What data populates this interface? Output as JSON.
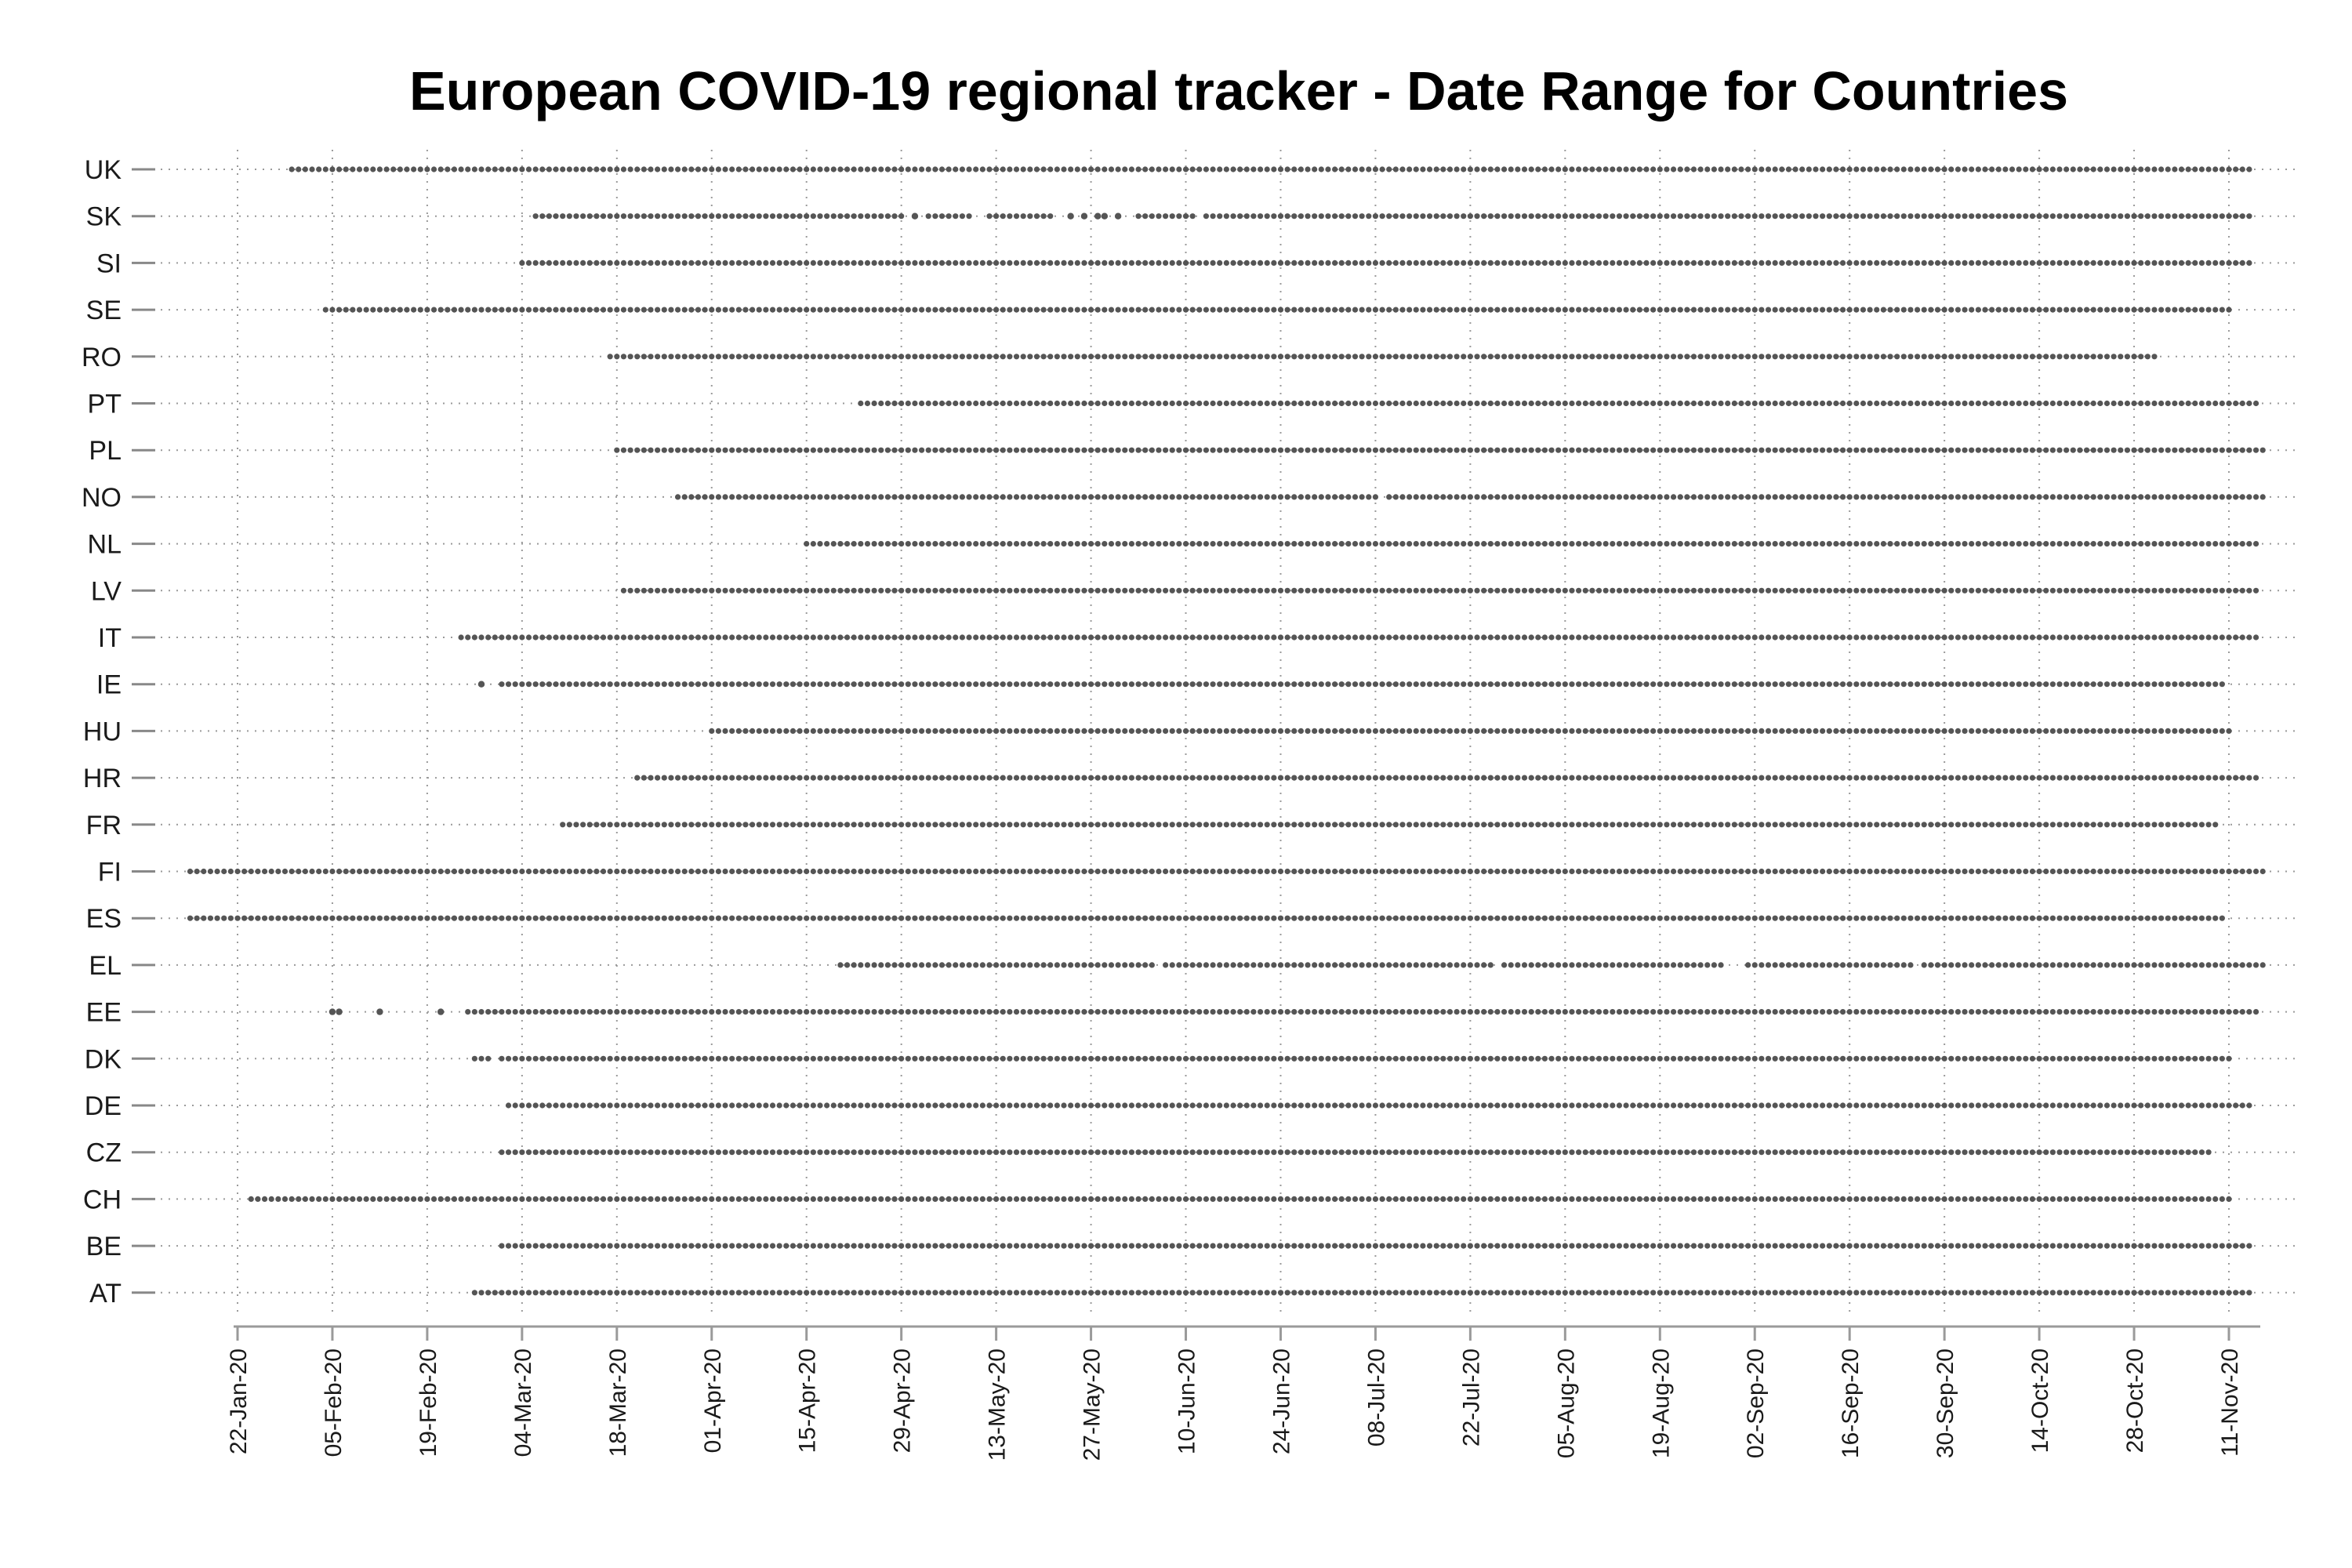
{
  "chart_data": {
    "type": "scatter",
    "title": "European COVID-19 regional tracker - Date Range for Countries",
    "xlabel": "",
    "ylabel": "",
    "x_axis": {
      "type": "date",
      "ticks": [
        "22-Jan-20",
        "05-Feb-20",
        "19-Feb-20",
        "04-Mar-20",
        "18-Mar-20",
        "01-Apr-20",
        "15-Apr-20",
        "29-Apr-20",
        "13-May-20",
        "27-May-20",
        "10-Jun-20",
        "24-Jun-20",
        "08-Jul-20",
        "22-Jul-20",
        "05-Aug-20",
        "19-Aug-20",
        "02-Sep-20",
        "16-Sep-20",
        "30-Sep-20",
        "14-Oct-20",
        "28-Oct-20",
        "11-Nov-20"
      ],
      "range": [
        "2020-01-15",
        "2020-11-21"
      ]
    },
    "grid": true,
    "legend": "none",
    "point_color": "#555555",
    "countries": [
      {
        "label": "UK",
        "segments": [
          [
            "2020-01-30",
            "2020-11-14"
          ]
        ]
      },
      {
        "label": "SK",
        "segments": [
          [
            "2020-03-06",
            "2020-03-10"
          ],
          [
            "2020-03-11",
            "2020-04-29"
          ],
          [
            "2020-05-03",
            "2020-05-09"
          ],
          [
            "2020-05-12",
            "2020-05-21"
          ],
          [
            "2020-06-03",
            "2020-06-11"
          ],
          [
            "2020-06-13",
            "2020-11-14"
          ]
        ],
        "points": [
          "2020-05-01",
          "2020-05-24",
          "2020-05-26",
          "2020-05-28",
          "2020-05-29",
          "2020-05-31"
        ]
      },
      {
        "label": "SI",
        "segments": [
          [
            "2020-03-04",
            "2020-11-14"
          ]
        ]
      },
      {
        "label": "SE",
        "segments": [
          [
            "2020-02-04",
            "2020-11-11"
          ]
        ]
      },
      {
        "label": "RO",
        "segments": [
          [
            "2020-03-17",
            "2020-10-31"
          ]
        ]
      },
      {
        "label": "PT",
        "segments": [
          [
            "2020-04-23",
            "2020-11-15"
          ]
        ]
      },
      {
        "label": "PL",
        "segments": [
          [
            "2020-03-18",
            "2020-11-16"
          ]
        ]
      },
      {
        "label": "NO",
        "segments": [
          [
            "2020-03-27",
            "2020-07-08"
          ],
          [
            "2020-07-10",
            "2020-11-16"
          ]
        ]
      },
      {
        "label": "NL",
        "segments": [
          [
            "2020-04-15",
            "2020-11-15"
          ]
        ]
      },
      {
        "label": "LV",
        "segments": [
          [
            "2020-03-19",
            "2020-11-15"
          ]
        ]
      },
      {
        "label": "IT",
        "segments": [
          [
            "2020-02-24",
            "2020-11-15"
          ]
        ]
      },
      {
        "label": "IE",
        "segments": [
          [
            "2020-03-01",
            "2020-11-10"
          ]
        ],
        "points": [
          "2020-02-27"
        ]
      },
      {
        "label": "HU",
        "segments": [
          [
            "2020-04-01",
            "2020-11-11"
          ]
        ]
      },
      {
        "label": "HR",
        "segments": [
          [
            "2020-03-21",
            "2020-11-15"
          ]
        ]
      },
      {
        "label": "FR",
        "segments": [
          [
            "2020-03-10",
            "2020-11-09"
          ]
        ]
      },
      {
        "label": "FI",
        "segments": [
          [
            "2020-01-15",
            "2020-11-16"
          ]
        ]
      },
      {
        "label": "ES",
        "segments": [
          [
            "2020-01-15",
            "2020-11-10"
          ]
        ]
      },
      {
        "label": "EL",
        "segments": [
          [
            "2020-04-20",
            "2020-06-05"
          ],
          [
            "2020-06-07",
            "2020-07-25"
          ],
          [
            "2020-07-27",
            "2020-08-28"
          ],
          [
            "2020-09-01",
            "2020-09-25"
          ],
          [
            "2020-09-27",
            "2020-11-08"
          ],
          [
            "2020-11-09",
            "2020-11-16"
          ]
        ]
      },
      {
        "label": "EE",
        "segments": [
          [
            "2020-02-25",
            "2020-11-15"
          ]
        ],
        "points": [
          "2020-02-05",
          "2020-02-06",
          "2020-02-12",
          "2020-02-21"
        ]
      },
      {
        "label": "DK",
        "segments": [
          [
            "2020-02-26",
            "2020-02-28"
          ],
          [
            "2020-03-01",
            "2020-11-11"
          ]
        ]
      },
      {
        "label": "DE",
        "segments": [
          [
            "2020-03-02",
            "2020-11-14"
          ]
        ]
      },
      {
        "label": "CZ",
        "segments": [
          [
            "2020-03-01",
            "2020-11-08"
          ]
        ]
      },
      {
        "label": "CH",
        "segments": [
          [
            "2020-01-24",
            "2020-11-11"
          ]
        ]
      },
      {
        "label": "BE",
        "segments": [
          [
            "2020-03-01",
            "2020-11-14"
          ]
        ]
      },
      {
        "label": "AT",
        "segments": [
          [
            "2020-02-26",
            "2020-11-14"
          ]
        ]
      }
    ]
  }
}
